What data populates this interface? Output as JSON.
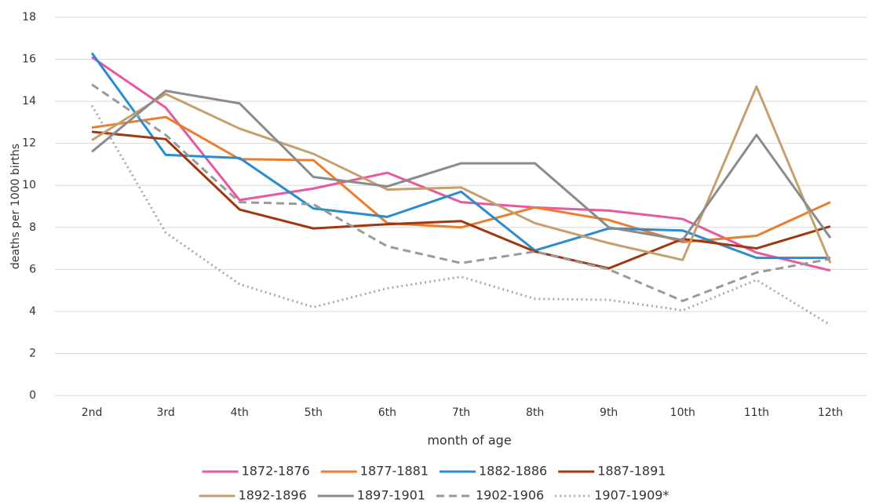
{
  "chart_data": {
    "type": "line",
    "x_label": "month of age",
    "y_label": "deaths per 1000 births",
    "categories": [
      "2nd",
      "3rd",
      "4th",
      "5th",
      "6th",
      "7th",
      "8th",
      "9th",
      "10th",
      "11th",
      "12th"
    ],
    "ylim": [
      0,
      18
    ],
    "yticks": [
      0,
      2,
      4,
      6,
      8,
      10,
      12,
      14,
      16,
      18
    ],
    "grid": true,
    "legend": "bottom",
    "series": [
      {
        "name": "1872-1876",
        "color": "#e8589e",
        "dash": "solid",
        "values": [
          16.1,
          13.7,
          9.3,
          9.85,
          10.6,
          9.2,
          8.95,
          8.8,
          8.4,
          6.8,
          5.95
        ]
      },
      {
        "name": "1877-1881",
        "color": "#ea7e30",
        "dash": "solid",
        "values": [
          12.75,
          13.25,
          11.25,
          11.2,
          8.2,
          8.0,
          8.95,
          8.35,
          7.3,
          7.6,
          9.2
        ]
      },
      {
        "name": "1882-1886",
        "color": "#2a8ccf",
        "dash": "solid",
        "values": [
          16.3,
          11.45,
          11.3,
          8.9,
          8.5,
          9.7,
          6.9,
          7.95,
          7.85,
          6.55,
          6.55
        ]
      },
      {
        "name": "1887-1891",
        "color": "#a0380f",
        "dash": "solid",
        "values": [
          12.55,
          12.2,
          8.85,
          7.95,
          8.15,
          8.3,
          6.85,
          6.05,
          7.45,
          7.0,
          8.05
        ]
      },
      {
        "name": "1892-1896",
        "color": "#c4a06f",
        "dash": "solid",
        "values": [
          12.15,
          14.35,
          12.7,
          11.5,
          9.8,
          9.9,
          8.2,
          7.25,
          6.45,
          14.7,
          6.3
        ]
      },
      {
        "name": "1897-1901",
        "color": "#8b8b8b",
        "dash": "solid",
        "values": [
          11.6,
          14.5,
          13.9,
          10.4,
          9.95,
          11.05,
          11.05,
          8.0,
          7.4,
          12.4,
          7.5
        ]
      },
      {
        "name": "1902-1906",
        "color": "#9a9a9a",
        "dash": "dashed",
        "values": [
          14.8,
          12.4,
          9.2,
          9.1,
          7.1,
          6.3,
          6.85,
          6.0,
          4.5,
          5.85,
          6.5
        ]
      },
      {
        "name": "1907-1909*",
        "color": "#aaaaaa",
        "dash": "dotted",
        "values": [
          13.8,
          7.75,
          5.3,
          4.2,
          5.1,
          5.65,
          4.6,
          4.55,
          4.05,
          5.5,
          3.35
        ]
      }
    ]
  }
}
